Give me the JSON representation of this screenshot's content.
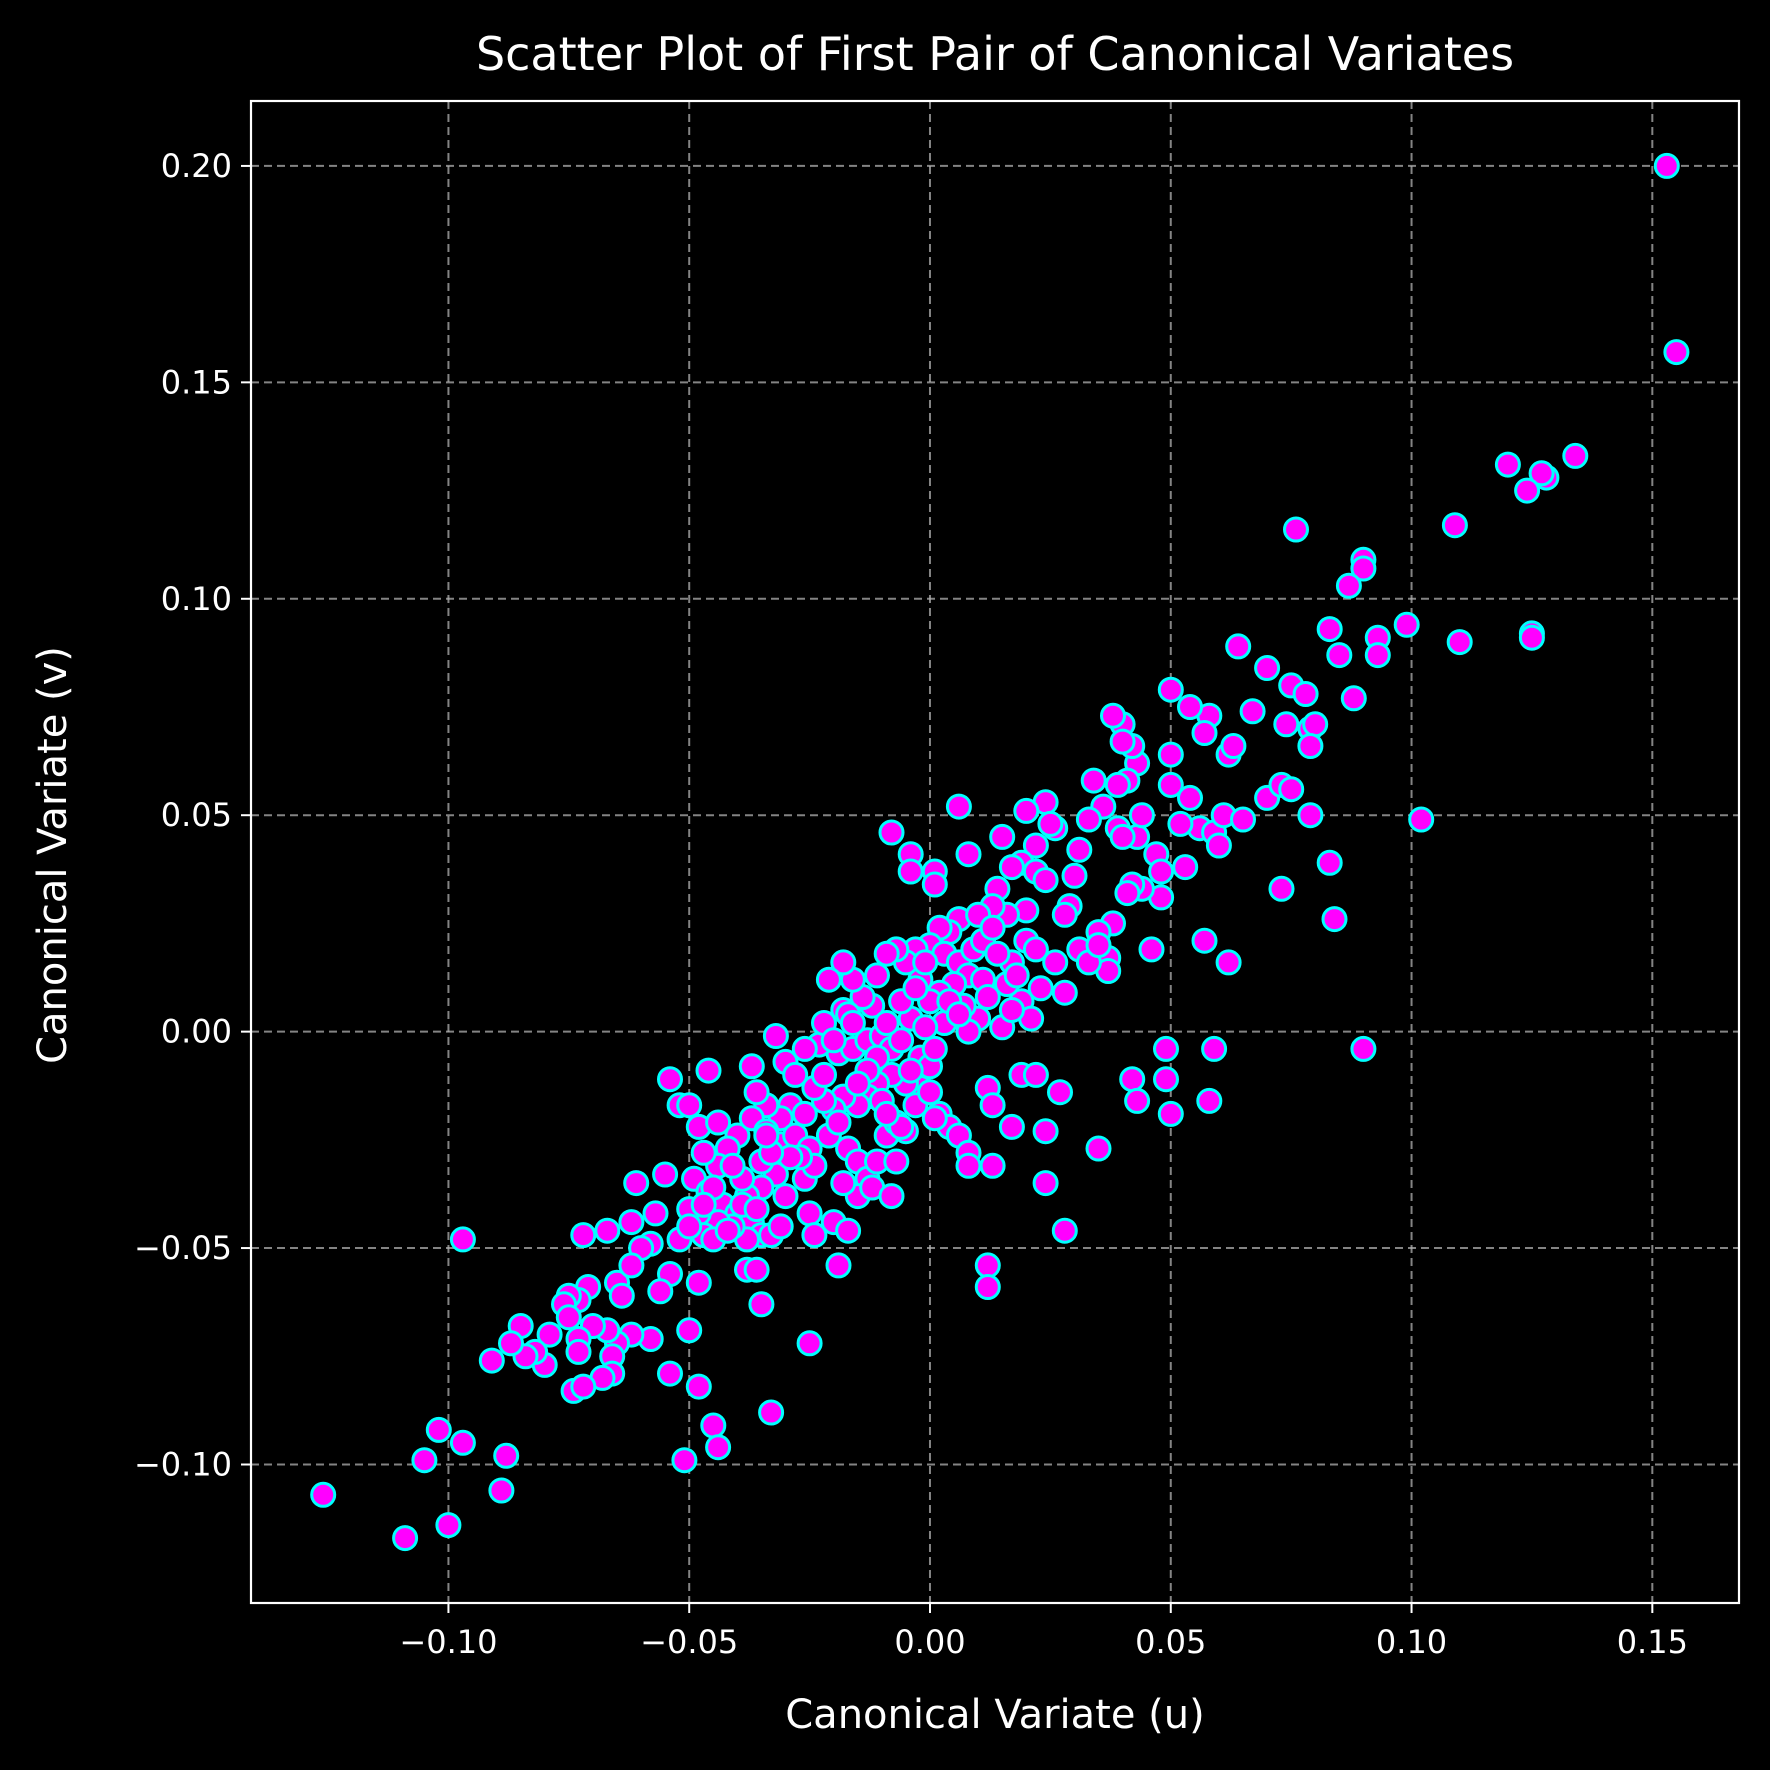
{
  "chart_data": {
    "type": "scatter",
    "title": "Scatter Plot of First Pair of Canonical Variates",
    "xlabel": "Canonical Variate (u)",
    "ylabel": "Canonical Variate (v)",
    "xlim": [
      -0.141,
      0.168
    ],
    "ylim": [
      -0.132,
      0.215
    ],
    "xticks": [
      -0.1,
      -0.05,
      0.0,
      0.05,
      0.1,
      0.15
    ],
    "yticks": [
      -0.1,
      -0.05,
      0.0,
      0.05,
      0.1,
      0.15,
      0.2
    ],
    "xtick_labels": [
      "−0.10",
      "−0.05",
      "0.00",
      "0.05",
      "0.10",
      "0.15"
    ],
    "ytick_labels": [
      "−0.10",
      "−0.05",
      "0.00",
      "0.05",
      "0.10",
      "0.15",
      "0.20"
    ],
    "grid": true,
    "colors": {
      "background": "#000000",
      "marker_fill": "#ff00ff",
      "marker_edge": "#00ffff",
      "text": "#ffffff"
    },
    "points": [
      [
        0.153,
        0.2
      ],
      [
        0.155,
        0.157
      ],
      [
        0.134,
        0.133
      ],
      [
        0.128,
        0.128
      ],
      [
        0.127,
        0.129
      ],
      [
        0.124,
        0.125
      ],
      [
        0.12,
        0.131
      ],
      [
        0.109,
        0.117
      ],
      [
        0.11,
        0.09
      ],
      [
        0.125,
        0.092
      ],
      [
        0.125,
        0.091
      ],
      [
        0.099,
        0.094
      ],
      [
        0.102,
        0.049
      ],
      [
        0.09,
        0.109
      ],
      [
        0.09,
        0.107
      ],
      [
        0.087,
        0.103
      ],
      [
        0.093,
        0.091
      ],
      [
        0.093,
        0.087
      ],
      [
        0.083,
        0.093
      ],
      [
        0.085,
        0.087
      ],
      [
        0.088,
        0.077
      ],
      [
        0.076,
        0.116
      ],
      [
        0.07,
        0.084
      ],
      [
        0.075,
        0.08
      ],
      [
        0.078,
        0.078
      ],
      [
        0.079,
        0.07
      ],
      [
        0.08,
        0.071
      ],
      [
        0.079,
        0.066
      ],
      [
        0.074,
        0.071
      ],
      [
        0.067,
        0.074
      ],
      [
        0.064,
        0.089
      ],
      [
        0.062,
        0.064
      ],
      [
        0.063,
        0.066
      ],
      [
        0.058,
        0.073
      ],
      [
        0.057,
        0.069
      ],
      [
        0.054,
        0.075
      ],
      [
        0.05,
        0.079
      ],
      [
        0.05,
        0.064
      ],
      [
        0.05,
        0.057
      ],
      [
        0.054,
        0.054
      ],
      [
        0.056,
        0.047
      ],
      [
        0.059,
        0.046
      ],
      [
        0.061,
        0.05
      ],
      [
        0.065,
        0.049
      ],
      [
        0.06,
        0.043
      ],
      [
        0.07,
        0.054
      ],
      [
        0.073,
        0.057
      ],
      [
        0.075,
        0.056
      ],
      [
        0.079,
        0.05
      ],
      [
        0.083,
        0.039
      ],
      [
        0.073,
        0.033
      ],
      [
        0.084,
        0.026
      ],
      [
        0.09,
        -0.004
      ],
      [
        0.057,
        0.021
      ],
      [
        0.062,
        0.016
      ],
      [
        0.053,
        0.038
      ],
      [
        0.052,
        0.048
      ],
      [
        0.047,
        0.041
      ],
      [
        0.048,
        0.037
      ],
      [
        0.048,
        0.031
      ],
      [
        0.046,
        0.019
      ],
      [
        0.044,
        0.033
      ],
      [
        0.042,
        0.034
      ],
      [
        0.043,
        0.045
      ],
      [
        0.044,
        0.05
      ],
      [
        0.043,
        0.062
      ],
      [
        0.042,
        0.066
      ],
      [
        0.04,
        0.071
      ],
      [
        0.038,
        0.073
      ],
      [
        0.04,
        0.067
      ],
      [
        0.041,
        0.058
      ],
      [
        0.039,
        0.057
      ],
      [
        0.036,
        0.052
      ],
      [
        0.039,
        0.047
      ],
      [
        0.04,
        0.045
      ],
      [
        0.041,
        0.032
      ],
      [
        0.038,
        0.025
      ],
      [
        0.037,
        0.017
      ],
      [
        0.037,
        0.014
      ],
      [
        0.035,
        0.023
      ],
      [
        0.034,
        0.058
      ],
      [
        0.033,
        0.049
      ],
      [
        0.031,
        0.042
      ],
      [
        0.03,
        0.036
      ],
      [
        0.029,
        0.029
      ],
      [
        0.028,
        0.027
      ],
      [
        0.026,
        0.047
      ],
      [
        0.024,
        0.053
      ],
      [
        0.025,
        0.048
      ],
      [
        0.022,
        0.043
      ],
      [
        0.02,
        0.051
      ],
      [
        0.019,
        0.039
      ],
      [
        0.017,
        0.038
      ],
      [
        0.022,
        0.037
      ],
      [
        0.024,
        0.035
      ],
      [
        0.02,
        0.028
      ],
      [
        0.016,
        0.027
      ],
      [
        0.014,
        0.033
      ],
      [
        0.013,
        0.029
      ],
      [
        0.015,
        0.045
      ],
      [
        0.006,
        0.052
      ],
      [
        0.008,
        0.041
      ],
      [
        0.006,
        0.026
      ],
      [
        0.01,
        0.027
      ],
      [
        0.004,
        0.023
      ],
      [
        0.002,
        0.024
      ],
      [
        0.0,
        0.02
      ],
      [
        0.003,
        0.018
      ],
      [
        0.006,
        0.016
      ],
      [
        0.008,
        0.013
      ],
      [
        0.011,
        0.012
      ],
      [
        0.012,
        0.008
      ],
      [
        0.01,
        0.003
      ],
      [
        0.007,
        0.006
      ],
      [
        0.005,
        0.011
      ],
      [
        0.002,
        0.009
      ],
      [
        0.0,
        0.007
      ],
      [
        -0.002,
        0.012
      ],
      [
        -0.003,
        0.019
      ],
      [
        -0.005,
        0.016
      ],
      [
        -0.007,
        0.019
      ],
      [
        -0.009,
        0.018
      ],
      [
        -0.011,
        0.013
      ],
      [
        -0.012,
        0.006
      ],
      [
        -0.014,
        0.008
      ],
      [
        -0.016,
        0.012
      ],
      [
        -0.018,
        0.016
      ],
      [
        -0.021,
        0.012
      ],
      [
        -0.018,
        0.005
      ],
      [
        -0.017,
        0.004
      ],
      [
        -0.019,
        -0.005
      ],
      [
        -0.016,
        -0.004
      ],
      [
        -0.013,
        -0.002
      ],
      [
        -0.01,
        -0.001
      ],
      [
        -0.008,
        -0.004
      ],
      [
        -0.006,
        -0.002
      ],
      [
        -0.004,
        0.003
      ],
      [
        -0.002,
        -0.006
      ],
      [
        0.0,
        -0.008
      ],
      [
        -0.002,
        -0.013
      ],
      [
        -0.005,
        -0.012
      ],
      [
        -0.008,
        -0.01
      ],
      [
        -0.011,
        -0.012
      ],
      [
        -0.013,
        -0.015
      ],
      [
        -0.015,
        -0.017
      ],
      [
        -0.018,
        -0.015
      ],
      [
        -0.02,
        -0.018
      ],
      [
        -0.022,
        -0.016
      ],
      [
        -0.024,
        -0.013
      ],
      [
        -0.023,
        -0.003
      ],
      [
        -0.026,
        -0.004
      ],
      [
        -0.022,
        0.002
      ],
      [
        -0.03,
        -0.007
      ],
      [
        -0.032,
        -0.001
      ],
      [
        -0.028,
        -0.01
      ],
      [
        -0.029,
        -0.017
      ],
      [
        -0.031,
        -0.02
      ],
      [
        -0.034,
        -0.017
      ],
      [
        -0.036,
        -0.014
      ],
      [
        -0.037,
        -0.008
      ],
      [
        -0.046,
        -0.009
      ],
      [
        -0.054,
        -0.011
      ],
      [
        -0.052,
        -0.017
      ],
      [
        -0.05,
        -0.017
      ],
      [
        -0.048,
        -0.022
      ],
      [
        -0.044,
        -0.021
      ],
      [
        -0.04,
        -0.024
      ],
      [
        -0.037,
        -0.02
      ],
      [
        -0.034,
        -0.023
      ],
      [
        -0.031,
        -0.026
      ],
      [
        -0.028,
        -0.024
      ],
      [
        -0.025,
        -0.027
      ],
      [
        -0.021,
        -0.024
      ],
      [
        -0.019,
        -0.021
      ],
      [
        -0.017,
        -0.027
      ],
      [
        -0.015,
        -0.03
      ],
      [
        -0.013,
        -0.034
      ],
      [
        -0.011,
        -0.03
      ],
      [
        -0.009,
        -0.024
      ],
      [
        -0.007,
        -0.021
      ],
      [
        -0.005,
        -0.023
      ],
      [
        -0.003,
        -0.017
      ],
      [
        0.0,
        -0.014
      ],
      [
        0.002,
        -0.019
      ],
      [
        0.004,
        -0.022
      ],
      [
        0.006,
        -0.024
      ],
      [
        0.008,
        -0.028
      ],
      [
        0.008,
        -0.031
      ],
      [
        0.012,
        -0.013
      ],
      [
        0.013,
        -0.017
      ],
      [
        0.013,
        -0.031
      ],
      [
        0.017,
        -0.022
      ],
      [
        0.019,
        -0.01
      ],
      [
        0.022,
        -0.01
      ],
      [
        0.024,
        -0.023
      ],
      [
        0.027,
        -0.014
      ],
      [
        0.024,
        -0.035
      ],
      [
        0.028,
        -0.046
      ],
      [
        0.035,
        -0.027
      ],
      [
        0.042,
        -0.011
      ],
      [
        0.043,
        -0.016
      ],
      [
        0.049,
        -0.004
      ],
      [
        0.049,
        -0.011
      ],
      [
        0.05,
        -0.019
      ],
      [
        0.059,
        -0.004
      ],
      [
        0.058,
        -0.016
      ],
      [
        0.012,
        -0.054
      ],
      [
        0.012,
        -0.059
      ],
      [
        0.008,
        0.0
      ],
      [
        0.015,
        0.001
      ],
      [
        0.017,
        0.016
      ],
      [
        0.019,
        0.007
      ],
      [
        0.021,
        0.003
      ],
      [
        0.023,
        0.01
      ],
      [
        0.026,
        0.016
      ],
      [
        0.028,
        0.009
      ],
      [
        0.031,
        0.019
      ],
      [
        0.033,
        0.016
      ],
      [
        0.035,
        0.02
      ],
      [
        -0.042,
        -0.027
      ],
      [
        -0.044,
        -0.031
      ],
      [
        -0.047,
        -0.028
      ],
      [
        -0.049,
        -0.034
      ],
      [
        -0.046,
        -0.037
      ],
      [
        -0.043,
        -0.04
      ],
      [
        -0.04,
        -0.042
      ],
      [
        -0.037,
        -0.044
      ],
      [
        -0.035,
        -0.047
      ],
      [
        -0.038,
        -0.048
      ],
      [
        -0.041,
        -0.045
      ],
      [
        -0.044,
        -0.044
      ],
      [
        -0.048,
        -0.042
      ],
      [
        -0.05,
        -0.041
      ],
      [
        -0.047,
        -0.047
      ],
      [
        -0.052,
        -0.048
      ],
      [
        -0.055,
        -0.033
      ],
      [
        -0.061,
        -0.035
      ],
      [
        -0.057,
        -0.042
      ],
      [
        -0.062,
        -0.044
      ],
      [
        -0.058,
        -0.049
      ],
      [
        -0.06,
        -0.05
      ],
      [
        -0.054,
        -0.056
      ],
      [
        -0.056,
        -0.06
      ],
      [
        -0.048,
        -0.058
      ],
      [
        -0.05,
        -0.069
      ],
      [
        -0.054,
        -0.079
      ],
      [
        -0.048,
        -0.082
      ],
      [
        -0.045,
        -0.091
      ],
      [
        -0.044,
        -0.096
      ],
      [
        -0.051,
        -0.099
      ],
      [
        -0.035,
        -0.063
      ],
      [
        -0.033,
        -0.088
      ],
      [
        -0.025,
        -0.072
      ],
      [
        -0.038,
        -0.055
      ],
      [
        -0.036,
        -0.055
      ],
      [
        -0.033,
        -0.047
      ],
      [
        -0.031,
        -0.045
      ],
      [
        -0.03,
        -0.038
      ],
      [
        -0.032,
        -0.033
      ],
      [
        -0.035,
        -0.03
      ],
      [
        -0.026,
        -0.034
      ],
      [
        -0.024,
        -0.031
      ],
      [
        -0.027,
        -0.029
      ],
      [
        -0.025,
        -0.042
      ],
      [
        -0.024,
        -0.047
      ],
      [
        -0.02,
        -0.044
      ],
      [
        -0.019,
        -0.054
      ],
      [
        -0.017,
        -0.046
      ],
      [
        -0.015,
        -0.038
      ],
      [
        -0.018,
        -0.035
      ],
      [
        -0.012,
        -0.036
      ],
      [
        -0.008,
        -0.038
      ],
      [
        -0.007,
        -0.03
      ],
      [
        -0.006,
        -0.022
      ],
      [
        -0.058,
        -0.071
      ],
      [
        -0.062,
        -0.07
      ],
      [
        -0.065,
        -0.072
      ],
      [
        -0.066,
        -0.075
      ],
      [
        -0.066,
        -0.079
      ],
      [
        -0.068,
        -0.08
      ],
      [
        -0.067,
        -0.069
      ],
      [
        -0.07,
        -0.068
      ],
      [
        -0.073,
        -0.071
      ],
      [
        -0.073,
        -0.074
      ],
      [
        -0.074,
        -0.083
      ],
      [
        -0.072,
        -0.082
      ],
      [
        -0.065,
        -0.058
      ],
      [
        -0.064,
        -0.061
      ],
      [
        -0.062,
        -0.054
      ],
      [
        -0.067,
        -0.046
      ],
      [
        -0.072,
        -0.047
      ],
      [
        -0.071,
        -0.059
      ],
      [
        -0.073,
        -0.062
      ],
      [
        -0.075,
        -0.061
      ],
      [
        -0.076,
        -0.063
      ],
      [
        -0.075,
        -0.066
      ],
      [
        -0.079,
        -0.07
      ],
      [
        -0.08,
        -0.077
      ],
      [
        -0.082,
        -0.074
      ],
      [
        -0.084,
        -0.075
      ],
      [
        -0.085,
        -0.068
      ],
      [
        -0.087,
        -0.072
      ],
      [
        -0.091,
        -0.076
      ],
      [
        -0.088,
        -0.098
      ],
      [
        -0.089,
        -0.106
      ],
      [
        -0.097,
        -0.048
      ],
      [
        -0.097,
        -0.095
      ],
      [
        -0.102,
        -0.092
      ],
      [
        -0.105,
        -0.099
      ],
      [
        -0.1,
        -0.114
      ],
      [
        -0.109,
        -0.117
      ],
      [
        -0.126,
        -0.107
      ],
      [
        -0.008,
        0.046
      ],
      [
        -0.004,
        0.041
      ],
      [
        -0.004,
        0.037
      ],
      [
        0.001,
        0.037
      ],
      [
        0.001,
        0.034
      ],
      [
        -0.006,
        0.007
      ],
      [
        -0.009,
        0.002
      ],
      [
        -0.011,
        -0.006
      ],
      [
        -0.01,
        -0.016
      ],
      [
        -0.009,
        -0.019
      ],
      [
        -0.004,
        -0.009
      ],
      [
        0.001,
        -0.004
      ],
      [
        0.003,
        0.002
      ],
      [
        0.004,
        0.007
      ],
      [
        0.006,
        0.004
      ],
      [
        0.009,
        0.019
      ],
      [
        0.011,
        0.021
      ],
      [
        0.014,
        0.018
      ],
      [
        0.016,
        0.011
      ],
      [
        0.018,
        0.013
      ],
      [
        0.02,
        0.021
      ],
      [
        0.022,
        0.019
      ],
      [
        0.017,
        0.005
      ],
      [
        0.013,
        0.024
      ],
      [
        -0.001,
        0.016
      ],
      [
        -0.003,
        0.01
      ],
      [
        -0.001,
        0.001
      ],
      [
        0.001,
        -0.02
      ],
      [
        -0.013,
        -0.009
      ],
      [
        -0.015,
        -0.012
      ],
      [
        -0.016,
        0.002
      ],
      [
        -0.02,
        -0.002
      ],
      [
        -0.022,
        -0.01
      ],
      [
        -0.026,
        -0.019
      ],
      [
        -0.029,
        -0.029
      ],
      [
        -0.033,
        -0.028
      ],
      [
        -0.035,
        -0.036
      ],
      [
        -0.038,
        -0.038
      ],
      [
        -0.039,
        -0.034
      ],
      [
        -0.041,
        -0.031
      ],
      [
        -0.045,
        -0.036
      ],
      [
        -0.047,
        -0.04
      ],
      [
        -0.05,
        -0.045
      ],
      [
        -0.045,
        -0.048
      ],
      [
        -0.042,
        -0.046
      ],
      [
        -0.039,
        -0.04
      ],
      [
        -0.036,
        -0.041
      ],
      [
        -0.034,
        -0.024
      ]
    ]
  }
}
